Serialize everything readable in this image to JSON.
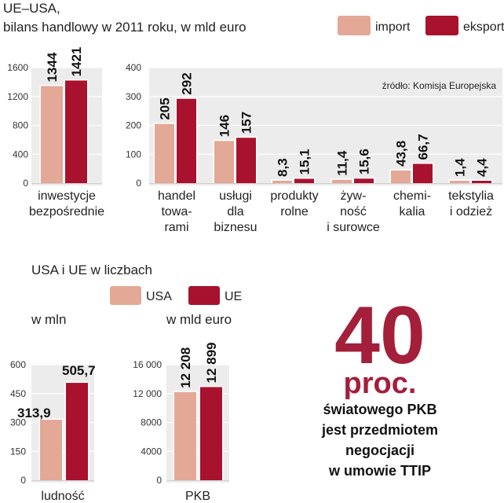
{
  "colors": {
    "import": "#e3a896",
    "eksport": "#a8122e",
    "panel": "#ececec",
    "highlight": "#a31f3a"
  },
  "legend_top": {
    "import": "import",
    "eksport": "eksport"
  },
  "legend_bottom": {
    "usa": "USA",
    "ue": "UE"
  },
  "chart_data": [
    {
      "type": "bar",
      "title": "UE–USA, bilans handlowy w 2011 roku, w mld euro",
      "title_lines": [
        "UE–USA,",
        "bilans handlowy w 2011 roku, w mld euro"
      ],
      "ylim": [
        0,
        1600
      ],
      "yticks": [
        "0",
        "400",
        "800",
        "1200",
        "1600"
      ],
      "categories": [
        [
          "inwestycje",
          "bezpośrednie"
        ]
      ],
      "series": [
        {
          "name": "import",
          "values": [
            1344
          ],
          "labels": [
            "1344"
          ]
        },
        {
          "name": "eksport",
          "values": [
            1421
          ],
          "labels": [
            "1421"
          ]
        }
      ]
    },
    {
      "type": "bar",
      "source": "źródło: Komisja Europejska",
      "ylim": [
        0,
        400
      ],
      "yticks": [
        "0",
        "100",
        "200",
        "300",
        "400"
      ],
      "categories": [
        [
          "handel",
          "towa-",
          "rami"
        ],
        [
          "usługi",
          "dla",
          "biznesu"
        ],
        [
          "produkty",
          "rolne"
        ],
        [
          "żyw-",
          "ność",
          "i surowce"
        ],
        [
          "chemi-",
          "kalia"
        ],
        [
          "tekstylia",
          "i odzież"
        ]
      ],
      "series": [
        {
          "name": "import",
          "values": [
            205,
            146,
            8.3,
            11.4,
            43.8,
            1.4
          ],
          "labels": [
            "205",
            "146",
            "8,3",
            "11,4",
            "43,8",
            "1,4"
          ]
        },
        {
          "name": "eksport",
          "values": [
            292,
            157,
            15.1,
            15.6,
            66.7,
            4.4
          ],
          "labels": [
            "292",
            "157",
            "15,1",
            "15,6",
            "66,7",
            "4,4"
          ]
        }
      ]
    },
    {
      "type": "bar",
      "title": "USA i UE w liczbach",
      "unit": "w mln",
      "ylim": [
        0,
        600
      ],
      "yticks": [
        "0",
        "150",
        "300",
        "450",
        "600"
      ],
      "categories": [
        "ludność"
      ],
      "series": [
        {
          "name": "USA",
          "values": [
            313.9
          ],
          "labels": [
            "313,9"
          ]
        },
        {
          "name": "UE",
          "values": [
            505.7
          ],
          "labels": [
            "505,7"
          ]
        }
      ]
    },
    {
      "type": "bar",
      "unit": "w mld euro",
      "ylim": [
        0,
        16000
      ],
      "yticks": [
        "0",
        "4000",
        "8000",
        "12 000",
        "16 000"
      ],
      "categories": [
        "PKB"
      ],
      "series": [
        {
          "name": "USA",
          "values": [
            12208
          ],
          "labels": [
            "12 208"
          ]
        },
        {
          "name": "UE",
          "values": [
            12899
          ],
          "labels": [
            "12 899"
          ]
        }
      ]
    }
  ],
  "callout": {
    "number": "40",
    "unit": "proc.",
    "lines": [
      "światowego PKB",
      "jest przedmiotem",
      "negocjacji",
      "w umowie TTIP"
    ]
  }
}
